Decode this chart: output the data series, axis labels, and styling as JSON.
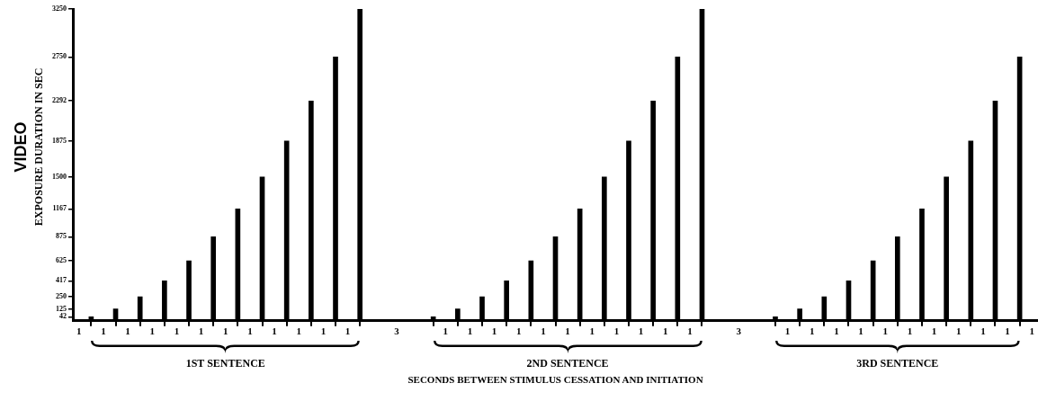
{
  "chart_data": {
    "type": "bar",
    "xlabel": "SECONDS BETWEEN STIMULUS CESSATION AND INITIATION",
    "ylabel": "VIDEO\nEXPOSURE DURATION IN SEC",
    "categories": [
      "1",
      null,
      "1",
      null,
      "1",
      null,
      "1",
      null,
      "1",
      null,
      "1",
      null,
      "1",
      null,
      "1",
      null,
      "1",
      null,
      "1",
      null,
      "1",
      null,
      "1",
      null,
      null,
      null,
      "3",
      null,
      null,
      null,
      "1",
      null,
      "1",
      null,
      "1",
      null,
      "1",
      null,
      "1",
      null,
      "1",
      null,
      "1",
      null,
      "1",
      null,
      "1",
      null,
      "1",
      null,
      "1",
      null,
      null,
      null,
      "3",
      null,
      null,
      null,
      "1",
      null,
      "1",
      null,
      "1",
      null,
      "1",
      null,
      "1",
      null,
      "1",
      null,
      "1",
      null,
      "1",
      null,
      "1",
      null,
      "1",
      null,
      "1"
    ],
    "values": [
      null,
      42,
      null,
      125,
      null,
      250,
      null,
      417,
      null,
      625,
      null,
      875,
      null,
      1167,
      null,
      1500,
      null,
      1875,
      null,
      2292,
      null,
      2750,
      null,
      3250,
      null,
      null,
      null,
      null,
      null,
      42,
      null,
      125,
      null,
      250,
      null,
      417,
      null,
      625,
      null,
      875,
      null,
      1167,
      null,
      1500,
      null,
      1875,
      null,
      2292,
      null,
      2750,
      null,
      3250,
      null,
      null,
      null,
      null,
      null,
      42,
      null,
      125,
      null,
      250,
      null,
      417,
      null,
      625,
      null,
      875,
      null,
      1167,
      null,
      1500,
      null,
      1875,
      null,
      2292,
      null,
      2750,
      null
    ],
    "color": "#000000",
    "ylim": [
      0,
      3250
    ],
    "yticks": [
      42,
      125,
      250,
      417,
      625,
      875,
      1167,
      1500,
      1875,
      2292,
      2750,
      3250
    ],
    "annotations": [
      "1ST SENTENCE",
      "2ND SENTENCE",
      "3RD SENTENCE"
    ],
    "grid": false,
    "legend": false
  }
}
